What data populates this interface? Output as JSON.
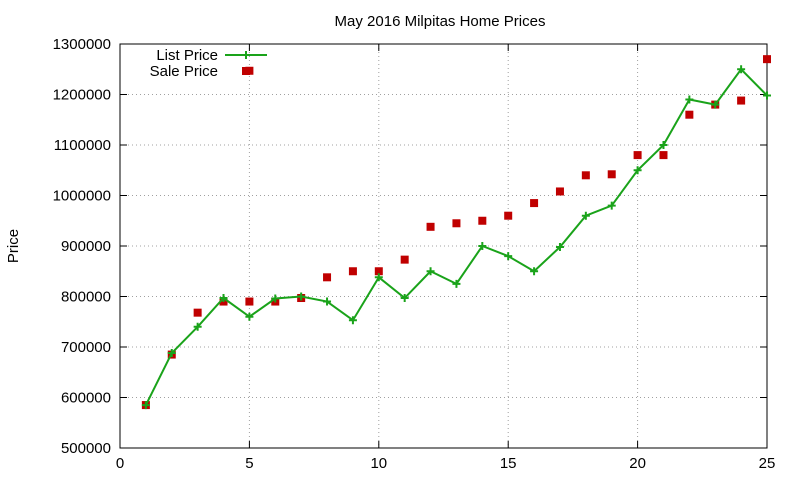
{
  "chart_data": {
    "type": "line",
    "title": "May 2016 Milpitas Home Prices",
    "xlabel": "",
    "ylabel": "Price",
    "xlim": [
      0,
      25
    ],
    "ylim": [
      500000,
      1300000
    ],
    "x_ticks": [
      0,
      5,
      10,
      15,
      20,
      25
    ],
    "y_ticks": [
      500000,
      600000,
      700000,
      800000,
      900000,
      1000000,
      1100000,
      1200000,
      1300000
    ],
    "grid": true,
    "legend_position": "top-left",
    "series": [
      {
        "name": "List Price",
        "style": "line-with-plus-markers",
        "color": "#1aa31a",
        "x": [
          1,
          2,
          3,
          4,
          5,
          6,
          7,
          8,
          9,
          10,
          11,
          12,
          13,
          14,
          15,
          16,
          17,
          18,
          19,
          20,
          21,
          22,
          23,
          24,
          25
        ],
        "values": [
          585000,
          688000,
          740000,
          797000,
          760000,
          796000,
          800000,
          790000,
          753000,
          838000,
          797000,
          850000,
          825000,
          900000,
          880000,
          850000,
          898000,
          960000,
          980000,
          1050000,
          1100000,
          1190000,
          1180000,
          1250000,
          1198000
        ]
      },
      {
        "name": "Sale Price",
        "style": "square-markers",
        "color": "#c00000",
        "x": [
          1,
          2,
          3,
          4,
          5,
          5,
          6,
          7,
          8,
          9,
          10,
          11,
          12,
          13,
          14,
          15,
          16,
          17,
          18,
          19,
          20,
          21,
          22,
          23,
          24,
          25
        ],
        "values": [
          585000,
          685000,
          768000,
          790000,
          1247000,
          790000,
          790000,
          797000,
          838000,
          850000,
          850000,
          873000,
          938000,
          945000,
          950000,
          960000,
          985000,
          1008000,
          1040000,
          1042000,
          1080000,
          1080000,
          1160000,
          1180000,
          1188000,
          1270000
        ]
      }
    ]
  }
}
